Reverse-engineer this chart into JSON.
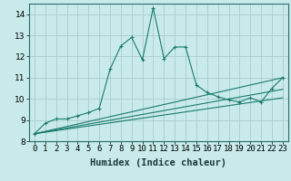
{
  "xlabel": "Humidex (Indice chaleur)",
  "xlim": [
    -0.5,
    23.5
  ],
  "ylim": [
    8,
    14.5
  ],
  "yticks": [
    8,
    9,
    10,
    11,
    12,
    13,
    14
  ],
  "xticks": [
    0,
    1,
    2,
    3,
    4,
    5,
    6,
    7,
    8,
    9,
    10,
    11,
    12,
    13,
    14,
    15,
    16,
    17,
    18,
    19,
    20,
    21,
    22,
    23
  ],
  "background_color": "#c8eaea",
  "grid_color": "#aacccc",
  "line_color": "#1a7a6e",
  "main_line": {
    "x": [
      0,
      1,
      2,
      3,
      4,
      5,
      6,
      7,
      8,
      9,
      10,
      11,
      12,
      13,
      14,
      15,
      16,
      17,
      18,
      19,
      20,
      21,
      22,
      23
    ],
    "y": [
      8.35,
      8.85,
      9.05,
      9.05,
      9.2,
      9.35,
      9.55,
      11.4,
      12.5,
      12.9,
      11.85,
      14.3,
      11.9,
      12.45,
      12.45,
      10.65,
      10.3,
      10.1,
      9.95,
      9.85,
      10.05,
      9.85,
      10.5,
      11.0
    ]
  },
  "reg_lines": [
    {
      "x": [
        0,
        23
      ],
      "y": [
        8.35,
        11.0
      ]
    },
    {
      "x": [
        0,
        23
      ],
      "y": [
        8.35,
        10.45
      ]
    },
    {
      "x": [
        0,
        23
      ],
      "y": [
        8.35,
        10.05
      ]
    }
  ],
  "tick_fontsize": 6.5,
  "label_fontsize": 7.5
}
